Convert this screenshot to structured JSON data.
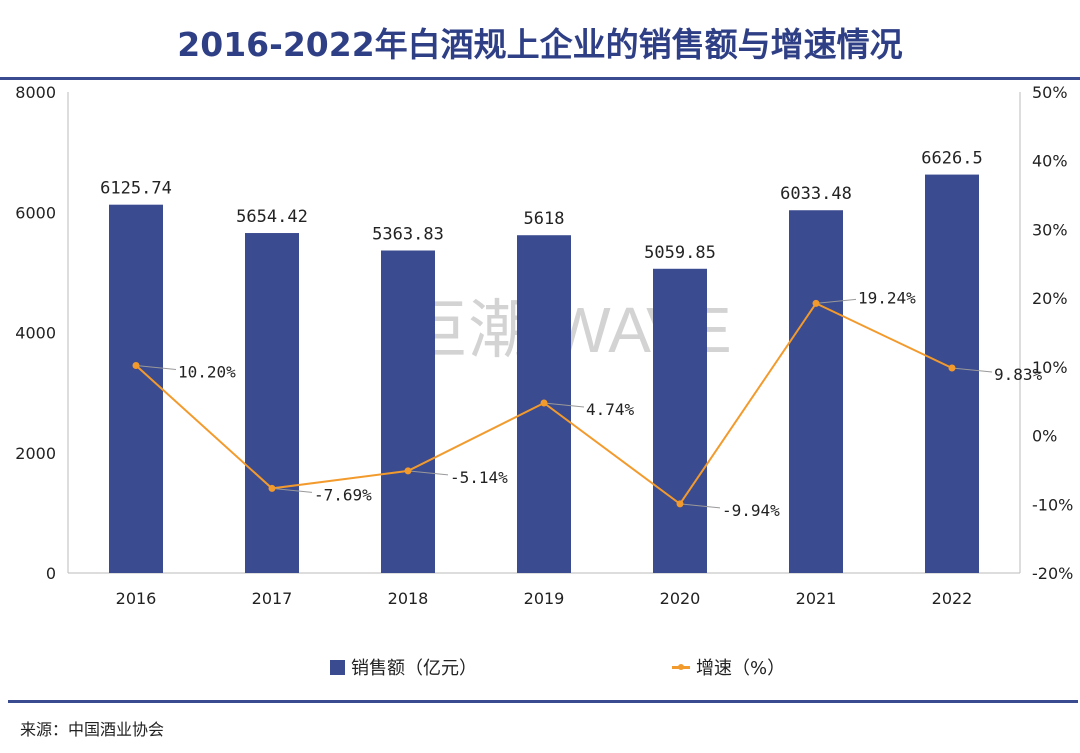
{
  "title": "2016-2022年白酒规上企业的销售额与增速情况",
  "watermark": "巨潮 WAVE",
  "source": "来源：中国酒业协会",
  "colors": {
    "bar": "#3b4b8f",
    "line": "#f39a2c",
    "title": "#2f3f86"
  },
  "chart_data": {
    "type": "bar+line",
    "title": "2016-2022年白酒规上企业的销售额与增速情况",
    "categories": [
      "2016",
      "2017",
      "2018",
      "2019",
      "2020",
      "2021",
      "2022"
    ],
    "series": [
      {
        "name": "销售额（亿元）",
        "type": "bar",
        "axis": "left",
        "values": [
          6125.74,
          5654.42,
          5363.83,
          5618,
          5059.85,
          6033.48,
          6626.5
        ],
        "labels": [
          "6125.74",
          "5654.42",
          "5363.83",
          "5618",
          "5059.85",
          "6033.48",
          "6626.5"
        ]
      },
      {
        "name": "增速（%）",
        "type": "line",
        "axis": "right",
        "values": [
          10.2,
          -7.69,
          -5.14,
          4.74,
          -9.94,
          19.24,
          9.83
        ],
        "labels": [
          "10.20%",
          "-7.69%",
          "-5.14%",
          "4.74%",
          "-9.94%",
          "19.24%",
          "9.83%"
        ]
      }
    ],
    "left_axis": {
      "range": [
        0,
        8000
      ],
      "ticks": [
        "0",
        "2000",
        "4000",
        "6000",
        "8000"
      ]
    },
    "right_axis": {
      "range": [
        -20,
        50
      ],
      "ticks": [
        "-20%",
        "-10%",
        "0%",
        "10%",
        "20%",
        "30%",
        "40%",
        "50%"
      ]
    },
    "grid": false,
    "legend": "bottom"
  }
}
